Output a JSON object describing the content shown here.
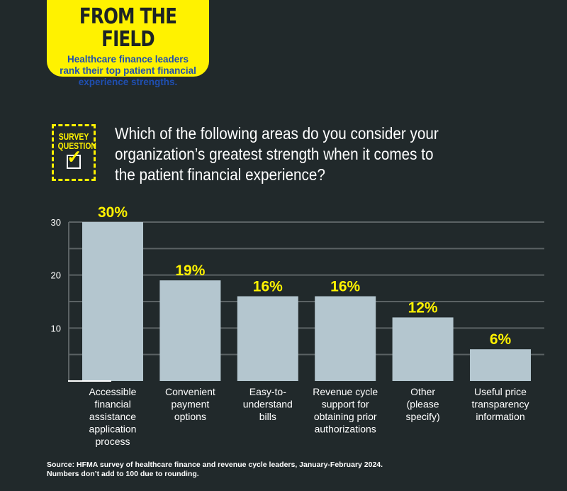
{
  "header": {
    "title": "FROM THE FIELD",
    "subtitle_lines": [
      "Healthcare finance leaders",
      "rank their top patient financial",
      "experience strengths."
    ]
  },
  "badge": {
    "line1": "SURVEY",
    "line2": "QUESTION"
  },
  "question": "Which of the following areas do you consider your organization’s greatest strength when it comes to the patient financial experience?",
  "source": {
    "line1": "Source: HFMA survey of healthcare finance and revenue cycle leaders, January-February 2024.",
    "line2": "Numbers don’t add to 100 due to rounding."
  },
  "colors": {
    "bar": "#b4c6cf",
    "label": "#fff200",
    "grid": "#5b6264",
    "background": "#21292b"
  },
  "chart_data": {
    "type": "bar",
    "categories": [
      [
        "Accessible",
        "financial",
        "assistance",
        "application",
        "process"
      ],
      [
        "Convenient",
        "payment",
        "options"
      ],
      [
        "Easy-to-",
        "understand",
        "bills"
      ],
      [
        "Revenue cycle",
        "support for",
        "obtaining prior",
        "authorizations"
      ],
      [
        "Other",
        "(please",
        "specify)"
      ],
      [
        "Useful price",
        "transparency",
        "information"
      ]
    ],
    "values": [
      30,
      19,
      16,
      16,
      12,
      6
    ],
    "data_labels": [
      "30%",
      "19%",
      "16%",
      "16%",
      "12%",
      "6%"
    ],
    "yticks": [
      10,
      20,
      30
    ],
    "ylim": [
      0,
      30
    ],
    "grid_step": 5,
    "xlabel": "",
    "ylabel": ""
  }
}
